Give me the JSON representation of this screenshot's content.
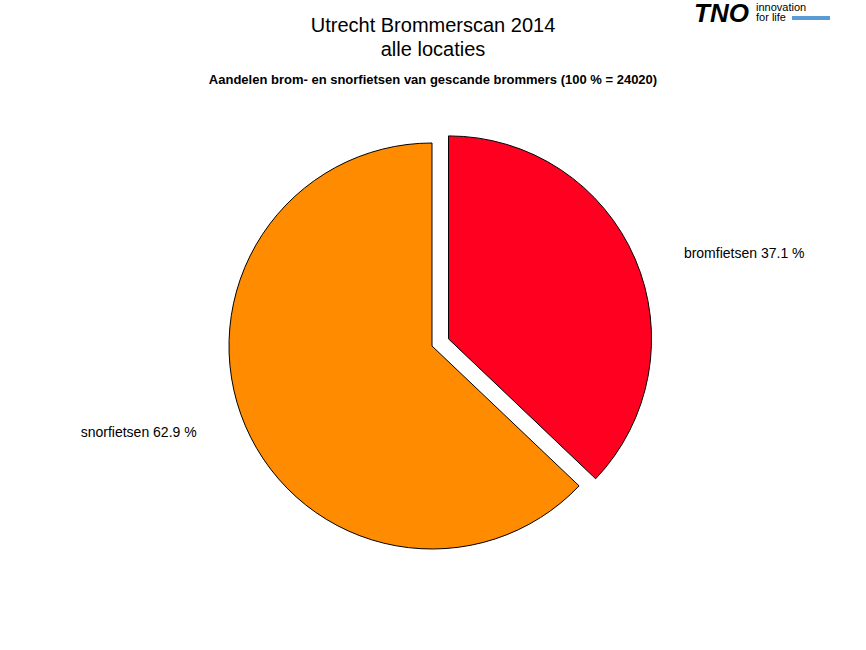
{
  "chart_data": {
    "type": "pie",
    "title": "Utrecht Brommerscan 2014\nalle locaties",
    "subtitle": "Aandelen brom- en snorfietsen van gescande brommers (100 % = 24020)",
    "annotations": [
      "TNO",
      "innovation\nfor life"
    ],
    "categories": [
      "bromfietsen",
      "snorfietsen"
    ],
    "values": [
      37.1,
      62.9
    ],
    "value_labels": [
      "bromfietsen 37.1 %",
      "snorfietsen 62.9 %"
    ],
    "colors": [
      "#ff0020",
      "#ff8c00"
    ],
    "data_labels": true
  }
}
